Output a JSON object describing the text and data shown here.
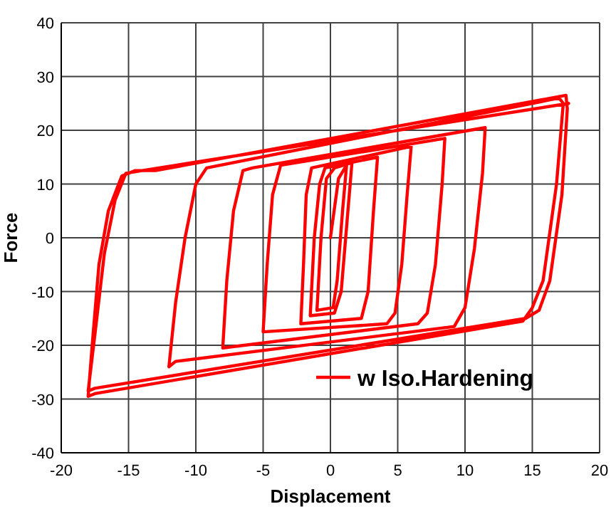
{
  "chart_data": {
    "type": "line",
    "xlabel": "Displacement",
    "ylabel": "Force",
    "xlim": [
      -20,
      20
    ],
    "xticks": [
      -20,
      -15,
      -10,
      -5,
      0,
      5,
      10,
      15,
      20
    ],
    "ylim": [
      -40,
      40
    ],
    "yticks": [
      -40,
      -30,
      -20,
      -10,
      0,
      10,
      20,
      30,
      40
    ],
    "grid": true,
    "legend": "bottom right",
    "marker": "none",
    "line_style": "solid",
    "series": [
      {
        "name": "w Iso.Hardening",
        "color": "#ff0000",
        "x": [
          0,
          0.6,
          1.2,
          0.9,
          0.5,
          0.2,
          -1,
          -0.7,
          -0.3,
          0.3,
          1.6,
          1.3,
          0.8,
          0.3,
          -1.5,
          -1.2,
          -0.8,
          -0.4,
          3.5,
          3.2,
          2.8,
          2.3,
          -2.2,
          -2,
          -1.8,
          -1.4,
          6,
          5.7,
          5.3,
          4.8,
          4.2,
          -5,
          -4.7,
          -4.3,
          -3.7,
          8.5,
          8.3,
          7.8,
          7.2,
          6.5,
          -8,
          -7.7,
          -7.2,
          -6.5,
          -5.8,
          11.5,
          11.3,
          10.7,
          10,
          9.2,
          -11.5,
          -12,
          -11.5,
          -10.8,
          -10,
          -9.2,
          17,
          17.3,
          16.8,
          15.8,
          15,
          14.3,
          -17.5,
          -18,
          -17.7,
          -17.2,
          -16.5,
          -15.5,
          -14.5,
          -13,
          17.5,
          17.6,
          17.2,
          16.3,
          15.5,
          14.5,
          -17.5,
          -18,
          -17.5,
          -16.8,
          -16,
          -15.2,
          -14,
          17.7
        ],
        "values": [
          0,
          11,
          13.5,
          5,
          -8,
          -13,
          -13.5,
          0,
          11,
          13,
          14,
          5,
          -10,
          -14,
          -14.5,
          0,
          10,
          13,
          15,
          5,
          -10,
          -15,
          -16,
          -5,
          8,
          13,
          17,
          8,
          -5,
          -14,
          -16,
          -17.5,
          -5,
          8,
          13.5,
          18.5,
          10,
          -5,
          -14,
          -16,
          -20.5,
          -8,
          5,
          12.5,
          13,
          20.5,
          12,
          -2,
          -13,
          -16.5,
          -23,
          -24,
          -12,
          0,
          10,
          13,
          26,
          25,
          10,
          -8,
          -13,
          -15.5,
          -29,
          -29.5,
          -20,
          -5,
          5,
          11.5,
          12.5,
          12.5,
          26.5,
          24,
          8,
          -8,
          -13.5,
          -15,
          -28,
          -28.5,
          -18,
          -3,
          7,
          12,
          12.5,
          25
        ]
      }
    ]
  }
}
